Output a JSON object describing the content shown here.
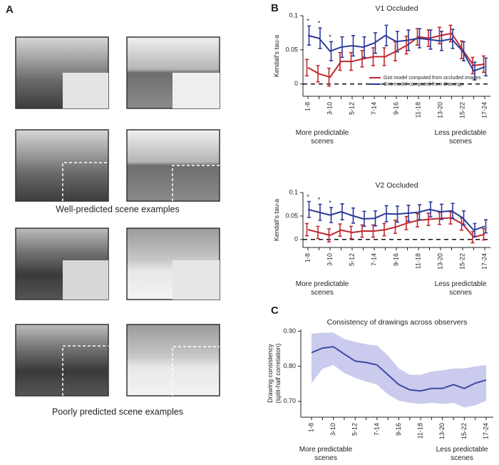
{
  "figure": {
    "panels": [
      "A",
      "B",
      "C"
    ],
    "captions": [
      "Well-predicted scene examples",
      "Poorly predicted scene examples"
    ]
  },
  "chart_data": [
    {
      "type": "line",
      "title": "V1 Occluded",
      "ylabel": [
        "Kendall's tau-a"
      ],
      "categories": [
        "1-8",
        null,
        "3-10",
        null,
        "5-12",
        null,
        "7-14",
        null,
        "9-16",
        null,
        "11-18",
        null,
        "13-20",
        null,
        "15-22",
        null,
        "17-24"
      ],
      "x_notes": [
        [
          "More predictable",
          "scenes"
        ],
        [
          "Less predictable",
          "scenes"
        ]
      ],
      "significance": [
        "*",
        "*",
        "*",
        null,
        null,
        null,
        null,
        null,
        null,
        null,
        null,
        null,
        null,
        null,
        null,
        null,
        null
      ],
      "series": [
        {
          "name": "Gist model computed from occluded images",
          "color": "#c0282f",
          "values": [
            0.024,
            0.015,
            0.01,
            0.033,
            0.033,
            0.037,
            0.04,
            0.04,
            0.048,
            0.057,
            0.069,
            0.067,
            0.071,
            0.074,
            0.05,
            0.027,
            0.029
          ],
          "errors": [
            0.012,
            0.012,
            0.013,
            0.013,
            0.013,
            0.012,
            0.013,
            0.013,
            0.014,
            0.013,
            0.012,
            0.012,
            0.012,
            0.012,
            0.013,
            0.012,
            0.012
          ]
        },
        {
          "name": "Gist model computed from drawings",
          "color": "#2b3a9a",
          "values": [
            0.071,
            0.067,
            0.048,
            0.054,
            0.056,
            0.054,
            0.06,
            0.071,
            0.062,
            0.064,
            0.067,
            0.065,
            0.063,
            0.066,
            0.048,
            0.019,
            0.025
          ],
          "errors": [
            0.014,
            0.015,
            0.014,
            0.015,
            0.015,
            0.015,
            0.015,
            0.015,
            0.015,
            0.015,
            0.014,
            0.014,
            0.014,
            0.014,
            0.014,
            0.013,
            0.013
          ]
        }
      ],
      "ylim": [
        -0.018,
        0.1
      ],
      "yticks": [
        0,
        0.05,
        0.1
      ],
      "hline": 0,
      "legend": "lower right"
    },
    {
      "type": "line",
      "title": "V2 Occluded",
      "ylabel": [
        "Kendall's tau-a"
      ],
      "categories": [
        "1-8",
        null,
        "3-10",
        null,
        "5-12",
        null,
        "7-14",
        null,
        "9-16",
        null,
        "11-18",
        null,
        "13-20",
        null,
        "15-22",
        null,
        "17-24"
      ],
      "x_notes": [
        [
          "More predictable",
          "scenes"
        ],
        [
          "Less predictable",
          "scenes"
        ]
      ],
      "significance": [
        "*",
        "*",
        "*",
        null,
        null,
        null,
        null,
        null,
        null,
        null,
        null,
        null,
        null,
        null,
        null,
        null,
        null
      ],
      "series": [
        {
          "color": "#c0282f",
          "values": [
            0.021,
            0.015,
            0.009,
            0.02,
            0.015,
            0.018,
            0.018,
            0.021,
            0.027,
            0.035,
            0.041,
            0.043,
            0.045,
            0.046,
            0.033,
            0.005,
            0.011
          ],
          "errors": [
            0.013,
            0.013,
            0.014,
            0.013,
            0.013,
            0.013,
            0.013,
            0.013,
            0.014,
            0.014,
            0.014,
            0.013,
            0.013,
            0.013,
            0.013,
            0.012,
            0.012
          ]
        },
        {
          "color": "#2b3a9a",
          "values": [
            0.064,
            0.058,
            0.052,
            0.059,
            0.051,
            0.044,
            0.045,
            0.055,
            0.054,
            0.056,
            0.058,
            0.064,
            0.059,
            0.061,
            0.046,
            0.02,
            0.028
          ],
          "errors": [
            0.017,
            0.017,
            0.016,
            0.017,
            0.016,
            0.016,
            0.016,
            0.017,
            0.017,
            0.017,
            0.016,
            0.016,
            0.016,
            0.016,
            0.015,
            0.014,
            0.014
          ]
        }
      ],
      "ylim": [
        -0.017,
        0.1
      ],
      "yticks": [
        0,
        0.05,
        0.1
      ],
      "hline": 0
    },
    {
      "type": "band-line",
      "title": "Consistency of drawings across observers",
      "ylabel": [
        "Drawing consistency",
        "(split-half correlation)"
      ],
      "categories": [
        "1-8",
        null,
        "3-10",
        null,
        "5-12",
        null,
        "7-14",
        null,
        "9-16",
        null,
        "11-18",
        null,
        "13-20",
        null,
        "15-22",
        null,
        "17-24"
      ],
      "x_notes": [
        [
          "More predictable",
          "scenes"
        ],
        [
          "Less predictable",
          "scenes"
        ]
      ],
      "series": [
        {
          "color": "#3a4aa8",
          "band_color": "#cbcbee",
          "values": [
            0.839,
            0.852,
            0.856,
            0.835,
            0.815,
            0.811,
            0.804,
            0.776,
            0.748,
            0.733,
            0.73,
            0.737,
            0.737,
            0.748,
            0.737,
            0.752,
            0.761
          ],
          "upper": [
            0.893,
            0.896,
            0.896,
            0.878,
            0.87,
            0.863,
            0.859,
            0.831,
            0.794,
            0.776,
            0.776,
            0.785,
            0.789,
            0.794,
            0.794,
            0.8,
            0.804
          ],
          "lower": [
            0.752,
            0.793,
            0.804,
            0.781,
            0.767,
            0.757,
            0.748,
            0.72,
            0.702,
            0.696,
            0.693,
            0.696,
            0.693,
            0.696,
            0.683,
            0.689,
            0.702
          ]
        }
      ],
      "ylim": [
        0.655,
        0.905
      ],
      "yticks": [
        {
          "value": 0.7,
          "label": "0.70"
        },
        {
          "value": 0.8,
          "label": "0.80"
        },
        {
          "value": 0.9,
          "label": "0.90"
        }
      ]
    }
  ]
}
